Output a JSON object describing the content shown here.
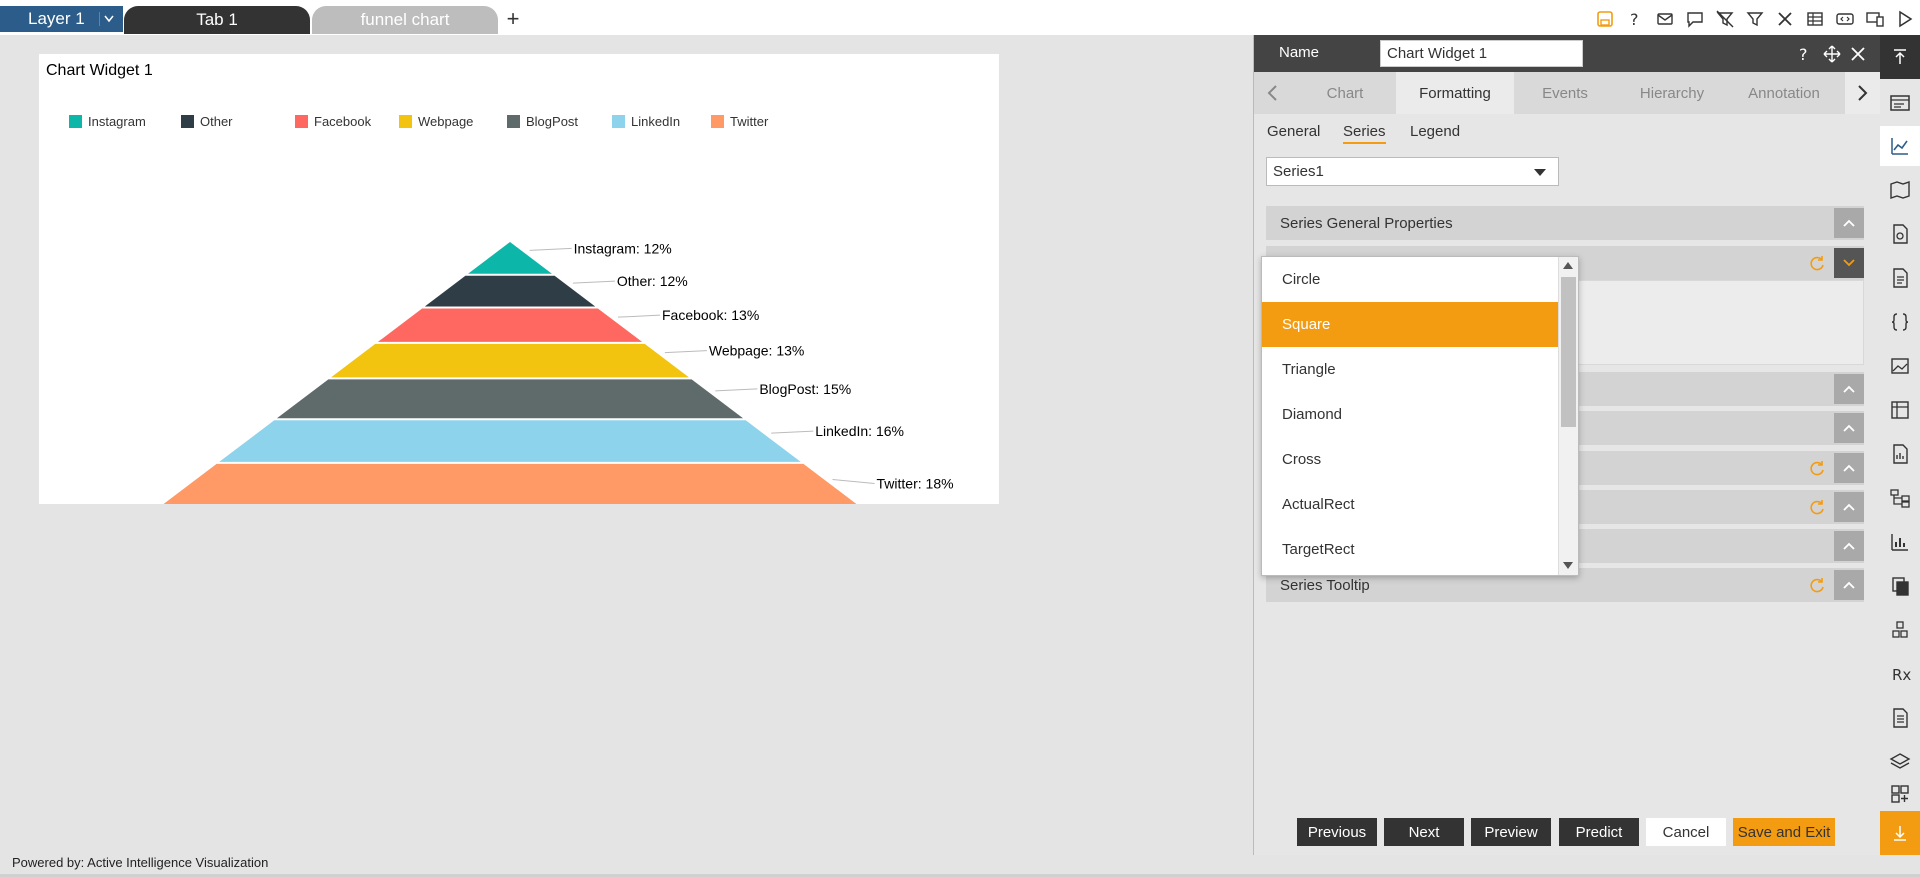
{
  "topbar": {
    "layer": "Layer 1",
    "tabs": [
      "Tab 1",
      "funnel chart"
    ],
    "add": "+",
    "icons": [
      "save-icon",
      "help-icon",
      "mail-icon",
      "comment-icon",
      "clear-filter-icon",
      "filter-icon",
      "tools-icon",
      "table-icon",
      "embed-icon",
      "devices-icon",
      "play-icon"
    ]
  },
  "widget": {
    "title": "Chart Widget 1"
  },
  "chart_data": {
    "type": "funnel",
    "title": "Chart Widget 1",
    "legend_position": "top",
    "categories": [
      "Instagram",
      "Other",
      "Facebook",
      "Webpage",
      "BlogPost",
      "LinkedIn",
      "Twitter"
    ],
    "values": [
      12,
      12,
      13,
      13,
      15,
      16,
      18
    ],
    "labels": [
      "Instagram: 12%",
      "Other: 12%",
      "Facebook: 13%",
      "Webpage: 13%",
      "BlogPost: 15%",
      "LinkedIn: 16%",
      "Twitter: 18%"
    ],
    "colors": [
      "#0cb7a9",
      "#2f3e46",
      "#ff6860",
      "#f2c40f",
      "#5f6a6b",
      "#8dd3ec",
      "#ff9966"
    ]
  },
  "footer": {
    "powered": "Powered by: Active Intelligence Visualization"
  },
  "panel": {
    "name_label": "Name",
    "name_value": "Chart Widget 1",
    "tabs": [
      "Chart",
      "Formatting",
      "Events",
      "Hierarchy",
      "Annotation"
    ],
    "active_tab": "Formatting",
    "subtabs": [
      "General",
      "Series",
      "Legend"
    ],
    "active_subtab": "Series",
    "series_select": "Series1",
    "sections": {
      "general": "Series General Properties",
      "tooltip": "Series Tooltip"
    },
    "dropdown_options": [
      "Circle",
      "Square",
      "Triangle",
      "Diamond",
      "Cross",
      "ActualRect",
      "TargetRect"
    ],
    "dropdown_selected": "Square",
    "buttons": {
      "previous": "Previous",
      "next": "Next",
      "preview": "Preview",
      "predict": "Predict",
      "cancel": "Cancel",
      "save": "Save and Exit"
    }
  },
  "colors": {
    "accent": "#f39c12",
    "dark": "#333333",
    "layer_blue": "#2c5d8a"
  }
}
